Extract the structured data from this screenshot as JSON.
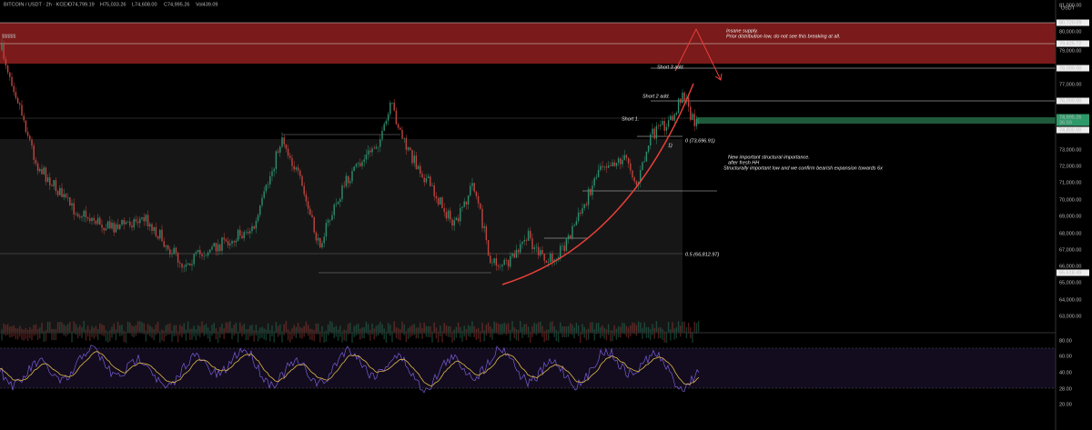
{
  "header": {
    "symbol": "BITCOIN / USDT · 2h · KCEX",
    "open": "O74,799.19",
    "high": "H75,033.26",
    "low": "L74,608.00",
    "close": "C74,995.26",
    "volume": "Vol439.09"
  },
  "currency": "USDT",
  "left_label": "$$$$$",
  "price_axis": [
    "81,000.00",
    "80,720.09",
    "80,000.00",
    "79,425.72",
    "79,000.00",
    "78,000.00",
    "77,000.00",
    "76,000.00",
    "74,995.26",
    "36:59",
    "74,800.00",
    "73,000.00",
    "72,000.00",
    "71,000.00",
    "70,000.00",
    "69,000.00",
    "68,000.00",
    "67,000.00",
    "66,000.00",
    "65,618.49",
    "65,000.00",
    "64,000.00",
    "63,000.00"
  ],
  "rsi_axis": [
    "80.00",
    "60.00",
    "40.00",
    "28.00",
    "20.00"
  ],
  "annotations": [
    "Insane supply.",
    "Prior distribution low, do not see this breaking at all.",
    "Short 3 add.",
    "Short 2 add.",
    "Short 1.",
    "New important structural importance.",
    "after fresh HH",
    "Structurally important low and we confirm bearish expansion towards 6x",
    "0 (73,696.91)",
    "0.5 (66,812.97)",
    "1)"
  ]
}
